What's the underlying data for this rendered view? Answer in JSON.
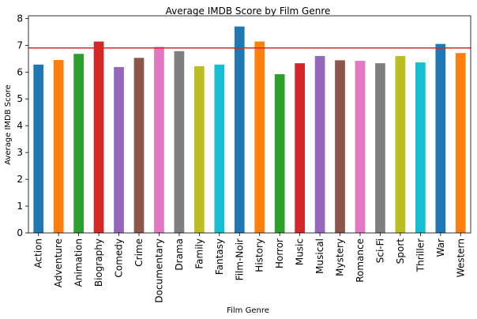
{
  "chart_data": {
    "type": "bar",
    "title": "Average IMDB Score by Film Genre",
    "xlabel": "Film Genre",
    "ylabel": "Average IMDB Score",
    "ylim": [
      0,
      8.1
    ],
    "yticks": [
      0,
      1,
      2,
      3,
      4,
      5,
      6,
      7,
      8
    ],
    "grid": false,
    "reference_line": {
      "value": 6.9,
      "color": "#d62728"
    },
    "categories": [
      "Action",
      "Adventure",
      "Animation",
      "Biography",
      "Comedy",
      "Crime",
      "Documentary",
      "Drama",
      "Family",
      "Fantasy",
      "Film-Noir",
      "History",
      "Horror",
      "Music",
      "Musical",
      "Mystery",
      "Romance",
      "Sci-Fi",
      "Sport",
      "Thriller",
      "War",
      "Western"
    ],
    "values": [
      6.28,
      6.45,
      6.68,
      7.14,
      6.19,
      6.53,
      6.94,
      6.78,
      6.22,
      6.28,
      7.7,
      7.14,
      5.92,
      6.33,
      6.6,
      6.44,
      6.42,
      6.33,
      6.6,
      6.36,
      7.05,
      6.71
    ],
    "colors": [
      "#1f77b4",
      "#ff7f0e",
      "#2ca02c",
      "#d62728",
      "#9467bd",
      "#8c564b",
      "#e377c2",
      "#7f7f7f",
      "#bcbd22",
      "#17becf",
      "#1f77b4",
      "#ff7f0e",
      "#2ca02c",
      "#d62728",
      "#9467bd",
      "#8c564b",
      "#e377c2",
      "#7f7f7f",
      "#bcbd22",
      "#17becf",
      "#1f77b4",
      "#ff7f0e"
    ]
  }
}
